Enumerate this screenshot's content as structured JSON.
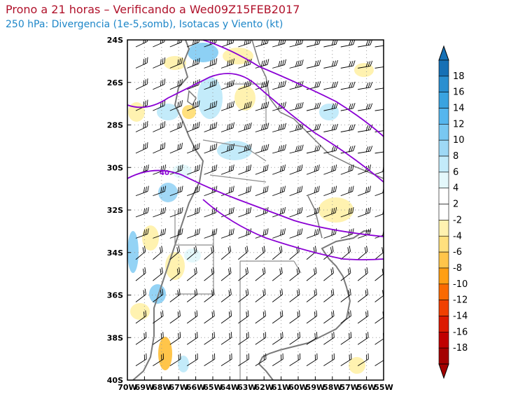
{
  "title": "Prono a 21 horas – Verificando a Wed09Z15FEB2017",
  "subtitle": "250 hPa: Divergencia (1e-5,somb), Isotacas y Viento (kt)",
  "map": {
    "lat_labels": [
      "24S",
      "26S",
      "28S",
      "30S",
      "32S",
      "34S",
      "36S",
      "38S",
      "40S"
    ],
    "lon_labels": [
      "70W",
      "69W",
      "68W",
      "67W",
      "66W",
      "65W",
      "64W",
      "63W",
      "62W",
      "61W",
      "60W",
      "59W",
      "58W",
      "57W",
      "56W",
      "55W"
    ],
    "isotach_label": "40",
    "colors": {
      "isotach": "#8a00d4",
      "grid": "#9a9a9a",
      "coast": "#7a7a7a",
      "barb": "#000000"
    }
  },
  "colorbar": {
    "labels": [
      "18",
      "16",
      "14",
      "12",
      "10",
      "8",
      "6",
      "4",
      "2",
      "-2",
      "-4",
      "-6",
      "-8",
      "-10",
      "-12",
      "-14",
      "-16",
      "-18"
    ],
    "colors": [
      "#1670b5",
      "#2a8fd0",
      "#3aa3e0",
      "#55b6ee",
      "#79c8f2",
      "#9ed8f5",
      "#c3ebfa",
      "#e4f8fb",
      "#ffffff",
      "#ffffff",
      "#fff2b0",
      "#ffe07e",
      "#ffc54a",
      "#ff9f14",
      "#fa6a00",
      "#f04000",
      "#dc1a00",
      "#c00000",
      "#a40000"
    ]
  }
}
